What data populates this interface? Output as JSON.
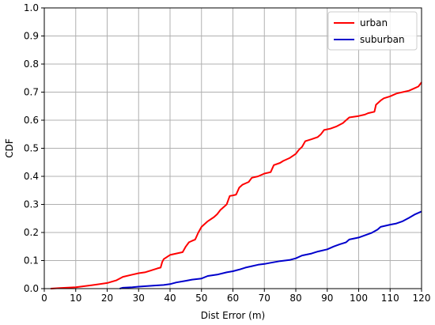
{
  "chart_data": {
    "type": "line",
    "title": "",
    "xlabel": "Dist Error (m)",
    "ylabel": "CDF",
    "xlim": [
      0,
      120
    ],
    "ylim": [
      0,
      1.0
    ],
    "xticks": [
      "0",
      "10",
      "20",
      "30",
      "40",
      "50",
      "60",
      "70",
      "80",
      "90",
      "100",
      "110",
      "120"
    ],
    "yticks": [
      "0.0",
      "0.1",
      "0.2",
      "0.3",
      "0.4",
      "0.5",
      "0.6",
      "0.7",
      "0.8",
      "0.9",
      "1.0"
    ],
    "grid": true,
    "legend_position": "top-right",
    "series": [
      {
        "name": "urban",
        "color": "#ff0000",
        "points": [
          [
            2,
            0.0
          ],
          [
            5,
            0.002
          ],
          [
            10,
            0.005
          ],
          [
            15,
            0.012
          ],
          [
            20,
            0.02
          ],
          [
            23,
            0.03
          ],
          [
            25,
            0.042
          ],
          [
            28,
            0.05
          ],
          [
            30,
            0.055
          ],
          [
            32,
            0.058
          ],
          [
            34,
            0.065
          ],
          [
            36,
            0.072
          ],
          [
            37,
            0.075
          ],
          [
            37.5,
            0.095
          ],
          [
            38,
            0.105
          ],
          [
            40,
            0.12
          ],
          [
            42,
            0.125
          ],
          [
            44,
            0.13
          ],
          [
            45,
            0.15
          ],
          [
            46,
            0.165
          ],
          [
            47,
            0.17
          ],
          [
            48,
            0.175
          ],
          [
            49,
            0.2
          ],
          [
            50,
            0.22
          ],
          [
            52,
            0.24
          ],
          [
            54,
            0.255
          ],
          [
            55,
            0.265
          ],
          [
            56,
            0.28
          ],
          [
            58,
            0.3
          ],
          [
            59,
            0.33
          ],
          [
            60,
            0.332
          ],
          [
            61,
            0.335
          ],
          [
            62,
            0.36
          ],
          [
            63,
            0.37
          ],
          [
            64,
            0.375
          ],
          [
            65,
            0.38
          ],
          [
            66,
            0.395
          ],
          [
            68,
            0.4
          ],
          [
            70,
            0.41
          ],
          [
            72,
            0.415
          ],
          [
            73,
            0.44
          ],
          [
            75,
            0.448
          ],
          [
            76,
            0.455
          ],
          [
            78,
            0.465
          ],
          [
            80,
            0.48
          ],
          [
            81,
            0.495
          ],
          [
            82,
            0.505
          ],
          [
            83,
            0.525
          ],
          [
            85,
            0.532
          ],
          [
            87,
            0.54
          ],
          [
            88,
            0.55
          ],
          [
            89,
            0.565
          ],
          [
            91,
            0.57
          ],
          [
            93,
            0.578
          ],
          [
            95,
            0.59
          ],
          [
            96,
            0.6
          ],
          [
            97,
            0.61
          ],
          [
            100,
            0.615
          ],
          [
            102,
            0.62
          ],
          [
            103,
            0.625
          ],
          [
            105,
            0.63
          ],
          [
            105.5,
            0.655
          ],
          [
            107,
            0.67
          ],
          [
            108,
            0.678
          ],
          [
            110,
            0.685
          ],
          [
            112,
            0.695
          ],
          [
            114,
            0.7
          ],
          [
            116,
            0.705
          ],
          [
            118,
            0.715
          ],
          [
            119,
            0.72
          ],
          [
            120,
            0.735
          ]
        ]
      },
      {
        "name": "suburban",
        "color": "#0000cc",
        "points": [
          [
            24,
            0.0
          ],
          [
            25,
            0.003
          ],
          [
            28,
            0.005
          ],
          [
            30,
            0.007
          ],
          [
            35,
            0.011
          ],
          [
            38,
            0.013
          ],
          [
            40,
            0.016
          ],
          [
            42,
            0.022
          ],
          [
            45,
            0.028
          ],
          [
            47,
            0.032
          ],
          [
            50,
            0.036
          ],
          [
            52,
            0.045
          ],
          [
            55,
            0.05
          ],
          [
            58,
            0.058
          ],
          [
            60,
            0.062
          ],
          [
            62,
            0.068
          ],
          [
            64,
            0.075
          ],
          [
            66,
            0.08
          ],
          [
            68,
            0.085
          ],
          [
            70,
            0.088
          ],
          [
            72,
            0.092
          ],
          [
            75,
            0.098
          ],
          [
            78,
            0.102
          ],
          [
            80,
            0.108
          ],
          [
            82,
            0.118
          ],
          [
            85,
            0.125
          ],
          [
            87,
            0.132
          ],
          [
            90,
            0.14
          ],
          [
            92,
            0.15
          ],
          [
            94,
            0.158
          ],
          [
            96,
            0.165
          ],
          [
            97,
            0.175
          ],
          [
            100,
            0.182
          ],
          [
            102,
            0.19
          ],
          [
            104,
            0.198
          ],
          [
            106,
            0.21
          ],
          [
            107,
            0.22
          ],
          [
            110,
            0.228
          ],
          [
            112,
            0.232
          ],
          [
            114,
            0.24
          ],
          [
            116,
            0.252
          ],
          [
            118,
            0.265
          ],
          [
            120,
            0.275
          ]
        ]
      }
    ]
  }
}
